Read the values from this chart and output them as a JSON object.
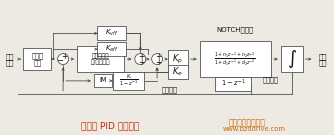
{
  "bg_color": "#ede9e3",
  "title": "改进的 PID 控制算法",
  "title_color": "#cc2200",
  "title_fontsize": 6.5,
  "watermark1": "深圳博智达机器人",
  "watermark2": "www.bzddrive.com",
  "watermark_color": "#cc6600"
}
